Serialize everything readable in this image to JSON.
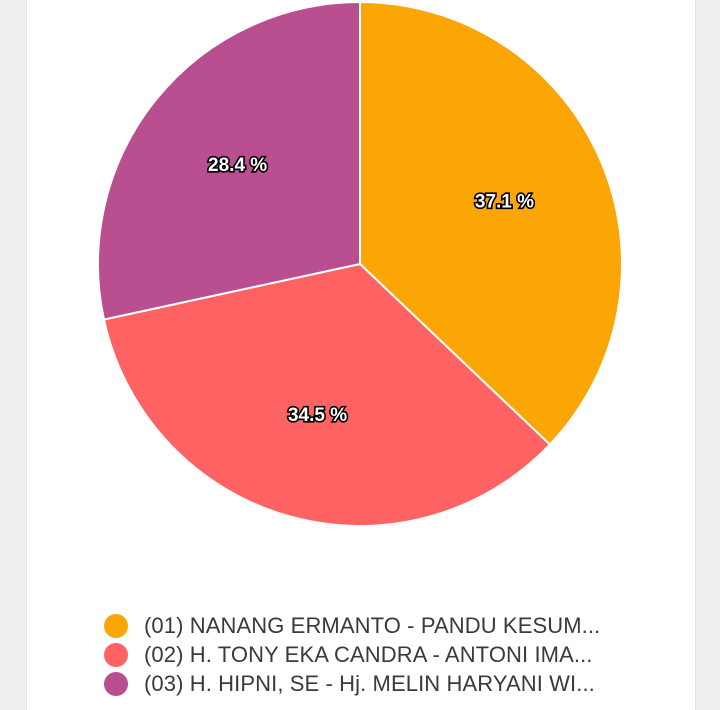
{
  "colors": {
    "background": "#efefef",
    "card": "#ffffff"
  },
  "chart_data": {
    "type": "pie",
    "title": "",
    "slices": [
      {
        "label": "(01) NANANG ERMANTO - PANDU KESUM...",
        "value": 37.1,
        "display": "37.1 %",
        "color": "#fba604"
      },
      {
        "label": "(02) H. TONY EKA CANDRA - ANTONI IMA...",
        "value": 34.5,
        "display": "34.5 %",
        "color": "#fe6262"
      },
      {
        "label": "(03) H. HIPNI, SE - Hj. MELIN HARYANI WI...",
        "value": 28.4,
        "display": "28.4 %",
        "color": "#b94e91"
      }
    ],
    "start_angle_deg": 0,
    "direction": "clockwise",
    "legend_position": "bottom"
  }
}
